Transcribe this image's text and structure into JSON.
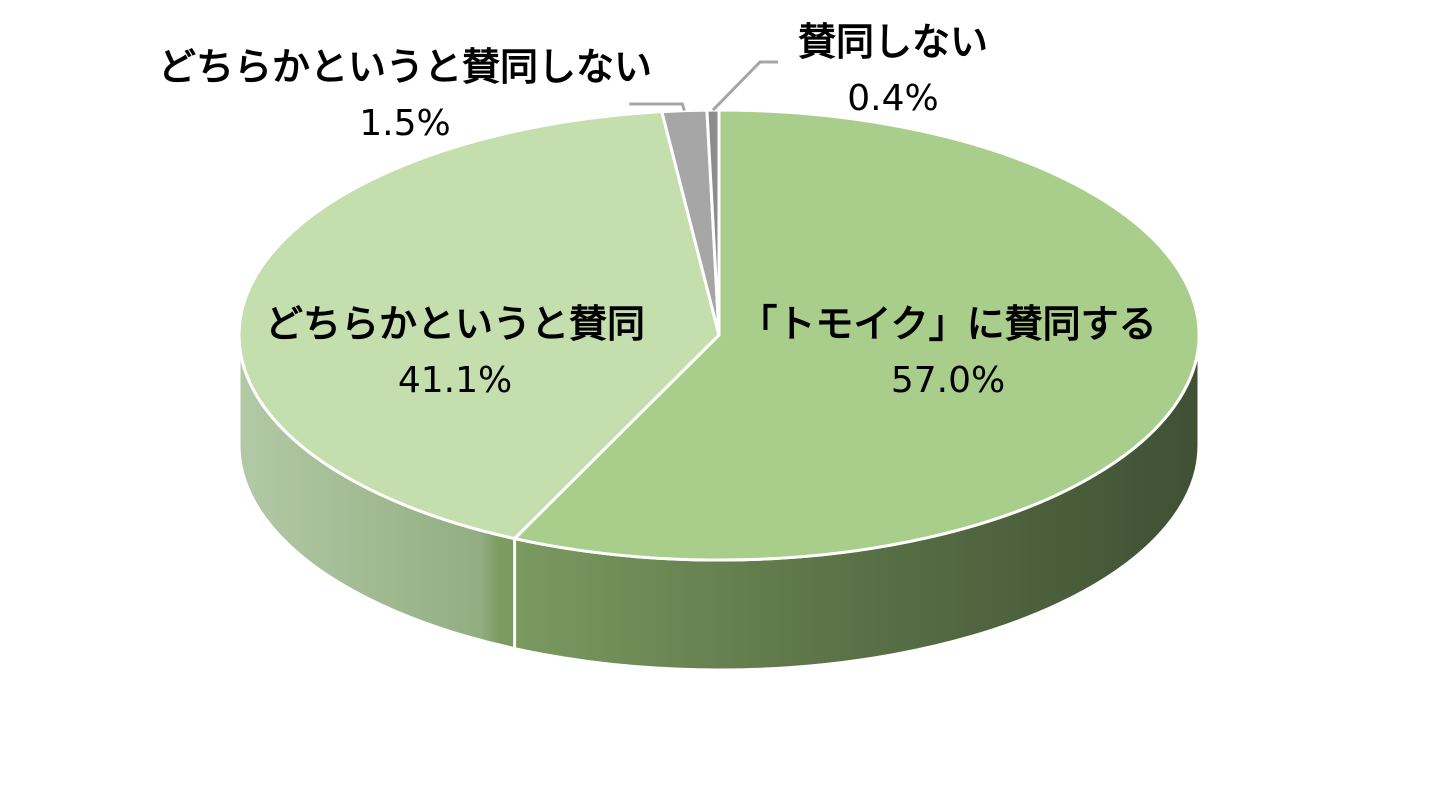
{
  "chart_data": {
    "type": "pie",
    "style": "3d",
    "title": "",
    "start": "12 o'clock, clockwise",
    "slices": [
      {
        "label": "「トモイク」に賛同する",
        "value": 57.0,
        "value_label": "57.0%",
        "color": "#a9cd8a"
      },
      {
        "label": "どちらかというと賛同",
        "value": 41.1,
        "value_label": "41.1%",
        "color": "#c4deae"
      },
      {
        "label": "どちらかというと賛同しない",
        "value": 1.5,
        "value_label": "1.5%",
        "color": "#a6a6a6"
      },
      {
        "label": "賛同しない",
        "value": 0.4,
        "value_label": "0.4%",
        "color": "#8c8c8c"
      }
    ],
    "side_colors": {
      "dark": "#435338",
      "mid": "#7a9a60",
      "light": "#9db892"
    },
    "edge_color": "#ffffff",
    "leader_line_color": "#a6a6a6"
  }
}
